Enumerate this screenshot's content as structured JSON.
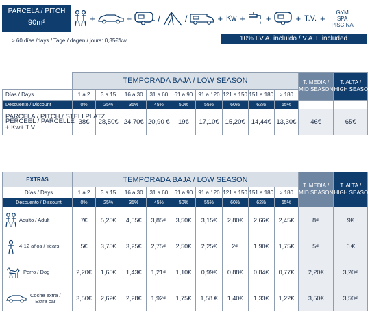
{
  "header": {
    "box_line1": "PARCELA / PITCH",
    "box_line2": "90m²",
    "kw": "Kw",
    "tv": "T.V.",
    "gym": "GYM",
    "spa": "SPA",
    "piscina": "PISCINA",
    "plus": "+",
    "slash": "/",
    "note": "> 60 días /days / Tage / dagen / jours: 0,35€/kw",
    "vat": "10% I.V.A. incluido / V.A.T. included"
  },
  "table1": {
    "low_season": "TEMPORADA BAJA / LOW SEASON",
    "mid_season_1": "T. MEDIA /",
    "mid_season_2": "MID SEASON",
    "high_season_1": "T. ALTA /",
    "high_season_2": "HIGH SEASON",
    "days_label": "Días / Days",
    "discount_label": "Descuento / Discount",
    "row_label_1": "PARCELA / PITCH / STELLPLATZ",
    "row_label_2": "PERCEEL / PARCELLE",
    "row_label_3": "+ Kw+ T.V",
    "days": [
      "1 a 2",
      "3 a 15",
      "16 a 30",
      "31 a 60",
      "61 a 90",
      "91 a 120",
      "121 a 150",
      "151 a 180",
      "> 180"
    ],
    "discounts": [
      "0%",
      "25%",
      "35%",
      "45%",
      "50%",
      "55%",
      "60%",
      "62%",
      "65%"
    ],
    "prices": [
      "38€",
      "28,50€",
      "24,70€",
      "20,90 €",
      "19€",
      "17,10€",
      "15,20€",
      "14,44€",
      "13,30€"
    ],
    "mid_price": "46€",
    "high_price": "65€"
  },
  "table2": {
    "extras": "EXTRAS",
    "low_season": "TEMPORADA BAJA / LOW SEASON",
    "mid_season_1": "T. MEDIA /",
    "mid_season_2": "MID SEASON",
    "high_season_1": "T. ALTA /",
    "high_season_2": "HIGH SEASON",
    "days_label": "Días / Days",
    "discount_label": "Descuento / Discount",
    "days": [
      "1 a 2",
      "3 a 15",
      "16 a 30",
      "31 a 60",
      "61 a 90",
      "91 a 120",
      "121 a 150",
      "151 a 180",
      "> 180"
    ],
    "discounts": [
      "0%",
      "25%",
      "35%",
      "45%",
      "50%",
      "55%",
      "60%",
      "62%",
      "65%"
    ],
    "rows": [
      {
        "label_1": "Adulto / Adult",
        "label_2": "",
        "icon": "adults-icon",
        "values": [
          "7€",
          "5,25€",
          "4,55€",
          "3,85€",
          "3,50€",
          "3,15€",
          "2,80€",
          "2,66€",
          "2,45€"
        ],
        "mid": "8€",
        "high": "9€"
      },
      {
        "label_1": "4-12 años / Years",
        "label_2": "",
        "icon": "child-icon",
        "values": [
          "5€",
          "3,75€",
          "3,25€",
          "2,75€",
          "2,50€",
          "2,25€",
          "2€",
          "1,90€",
          "1,75€"
        ],
        "mid": "5€",
        "high": "6 €"
      },
      {
        "label_1": "Perro / Dog",
        "label_2": "",
        "icon": "dog-icon",
        "values": [
          "2,20€",
          "1,65€",
          "1,43€",
          "1,21€",
          "1,10€",
          "0,99€",
          "0,88€",
          "0,84€",
          "0,77€"
        ],
        "mid": "2,20€",
        "high": "3,20€"
      },
      {
        "label_1": "Coche extra /",
        "label_2": "Extra car",
        "icon": "car-icon",
        "values": [
          "3,50€",
          "2,62€",
          "2,28€",
          "1,92€",
          "1,75€",
          "1,58 €",
          "1,40€",
          "1,33€",
          "1,22€"
        ],
        "mid": "3,50€",
        "high": "3,50€"
      }
    ]
  }
}
